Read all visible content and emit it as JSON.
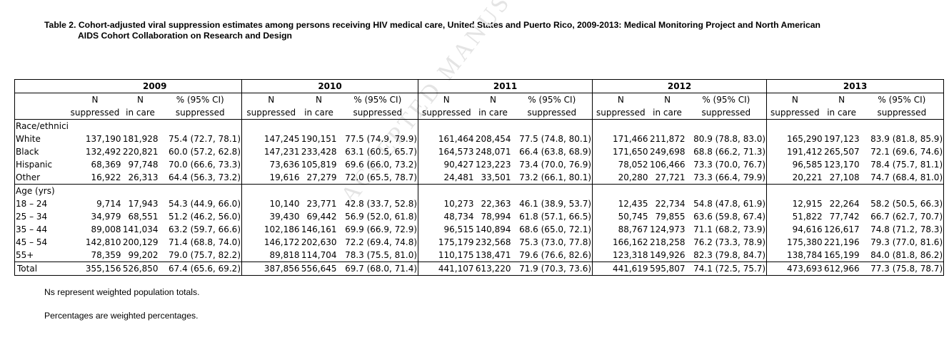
{
  "title_line1": "Table 2. Cohort-adjusted viral suppression estimates among persons receiving HIV medical care, United States and Puerto Rico, 2009-2013: Medical Monitoring Project and North American",
  "title_line2": "AIDS Cohort Collaboration on Research and Design",
  "watermark": "ACCEPTED MANUSCRIPT",
  "years": [
    "2009",
    "2010",
    "2011",
    "2012",
    "2013"
  ],
  "col_headers_line1": [
    "N",
    "N",
    "% (95% CI)"
  ],
  "col_headers_line2": [
    "suppressed",
    "in care",
    "suppressed"
  ],
  "sections": [
    {
      "label": "Race/ethnicity",
      "rows": [
        {
          "label": "White",
          "cells": [
            [
              "137,190",
              "181,928",
              "75.4 (72.7, 78.1)"
            ],
            [
              "147,245",
              "190,151",
              "77.5 (74.9, 79.9)"
            ],
            [
              "161,464",
              "208,454",
              "77.5 (74.8, 80.1)"
            ],
            [
              "171,466",
              "211,872",
              "80.9 (78.8, 83.0)"
            ],
            [
              "165,290",
              "197,123",
              "83.9 (81.8, 85.9)"
            ]
          ]
        },
        {
          "label": "Black",
          "cells": [
            [
              "132,492",
              "220,821",
              "60.0 (57.2, 62.8)"
            ],
            [
              "147,231",
              "233,428",
              "63.1 (60.5, 65.7)"
            ],
            [
              "164,573",
              "248,071",
              "66.4 (63.8, 68.9)"
            ],
            [
              "171,650",
              "249,698",
              "68.8 (66.2, 71.3)"
            ],
            [
              "191,412",
              "265,507",
              "72.1 (69.6, 74.6)"
            ]
          ]
        },
        {
          "label": "Hispanic",
          "cells": [
            [
              "68,369",
              "97,748",
              "70.0 (66.6, 73.3)"
            ],
            [
              "73,636",
              "105,819",
              "69.6 (66.0, 73.2)"
            ],
            [
              "90,427",
              "123,223",
              "73.4 (70.0, 76.9)"
            ],
            [
              "78,052",
              "106,466",
              "73.3 (70.0, 76.7)"
            ],
            [
              "96,585",
              "123,170",
              "78.4 (75.7, 81.1)"
            ]
          ]
        },
        {
          "label": "Other",
          "cells": [
            [
              "16,922",
              "26,313",
              "64.4 (56.3, 73.2)"
            ],
            [
              "19,616",
              "27,279",
              "72.0 (65.5, 78.7)"
            ],
            [
              "24,481",
              "33,501",
              "73.2 (66.1, 80.1)"
            ],
            [
              "20,280",
              "27,721",
              "73.3 (66.4, 79.9)"
            ],
            [
              "20,221",
              "27,108",
              "74.7 (68.4, 81.0)"
            ]
          ]
        }
      ]
    },
    {
      "label": "Age (yrs)",
      "rows": [
        {
          "label": "18 – 24",
          "cells": [
            [
              "9,714",
              "17,943",
              "54.3 (44.9, 66.0)"
            ],
            [
              "10,140",
              "23,771",
              "42.8 (33.7, 52.8)"
            ],
            [
              "10,273",
              "22,363",
              "46.1 (38.9, 53.7)"
            ],
            [
              "12,435",
              "22,734",
              "54.8 (47.8, 61.9)"
            ],
            [
              "12,915",
              "22,264",
              "58.2 (50.5, 66.3)"
            ]
          ]
        },
        {
          "label": "25 – 34",
          "cells": [
            [
              "34,979",
              "68,551",
              "51.2 (46.2, 56.0)"
            ],
            [
              "39,430",
              "69,442",
              "56.9 (52.0, 61.8)"
            ],
            [
              "48,734",
              "78,994",
              "61.8 (57.1, 66.5)"
            ],
            [
              "50,745",
              "79,855",
              "63.6 (59.8, 67.4)"
            ],
            [
              "51,822",
              "77,742",
              "66.7 (62.7, 70.7)"
            ]
          ]
        },
        {
          "label": "35 – 44",
          "cells": [
            [
              "89,008",
              "141,034",
              "63.2 (59.7, 66.6)"
            ],
            [
              "102,186",
              "146,161",
              "69.9 (66.9, 72.9)"
            ],
            [
              "96,515",
              "140,894",
              "68.6 (65.0, 72.1)"
            ],
            [
              "88,767",
              "124,973",
              "71.1 (68.2, 73.9)"
            ],
            [
              "94,616",
              "126,617",
              "74.8 (71.2, 78.3)"
            ]
          ]
        },
        {
          "label": "45 – 54",
          "cells": [
            [
              "142,810",
              "200,129",
              "71.4 (68.8, 74.0)"
            ],
            [
              "146,172",
              "202,630",
              "72.2 (69.4, 74.8)"
            ],
            [
              "175,179",
              "232,568",
              "75.3 (73.0, 77.8)"
            ],
            [
              "166,162",
              "218,258",
              "76.2 (73.3, 78.9)"
            ],
            [
              "175,380",
              "221,196",
              "79.3 (77.0, 81.6)"
            ]
          ]
        },
        {
          "label": "55+",
          "cells": [
            [
              "78,359",
              "99,202",
              "79.0 (75.7, 82.2)"
            ],
            [
              "89,818",
              "114,704",
              "78.3 (75.5, 81.0)"
            ],
            [
              "110,175",
              "138,471",
              "79.6 (76.6, 82.6)"
            ],
            [
              "123,318",
              "149,926",
              "82.3 (79.8, 84.7)"
            ],
            [
              "138,784",
              "165,199",
              "84.0 (81.8, 86.2)"
            ]
          ]
        }
      ]
    }
  ],
  "total": {
    "label": "Total",
    "cells": [
      [
        "355,156",
        "526,850",
        "67.4 (65.6, 69.2)"
      ],
      [
        "387,856",
        "556,645",
        "69.7 (68.0, 71.4)"
      ],
      [
        "441,107",
        "613,220",
        "71.9 (70.3, 73.6)"
      ],
      [
        "441,619",
        "595,807",
        "74.1 (72.5, 75.7)"
      ],
      [
        "473,693",
        "612,966",
        "77.3 (75.8, 78.7)"
      ]
    ]
  },
  "notes": [
    "Ns represent weighted population totals.",
    "Percentages are weighted percentages."
  ]
}
